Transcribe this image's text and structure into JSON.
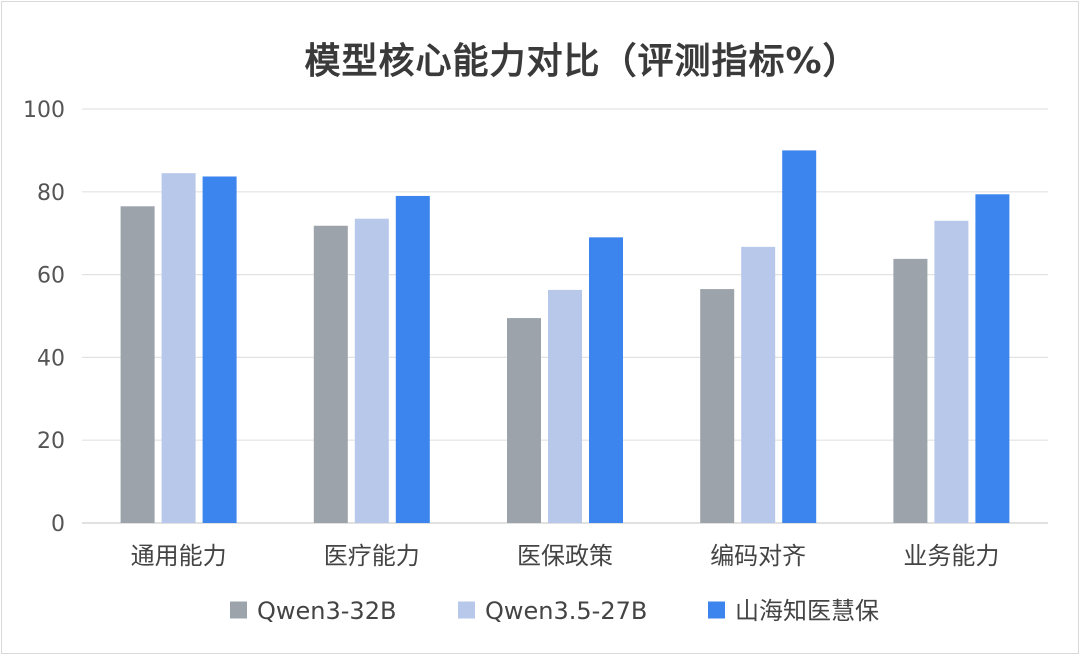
{
  "chart_data": {
    "type": "bar",
    "title": "模型核心能力对比（评测指标%）",
    "categories": [
      "通用能力",
      "医疗能力",
      "医保政策",
      "编码对齐",
      "业务能力"
    ],
    "series": [
      {
        "name": "Qwen3-32B",
        "color": "#9ca3ab",
        "values": [
          76.5,
          71.8,
          49.5,
          56.5,
          63.8
        ]
      },
      {
        "name": "Qwen3.5-27B",
        "color": "#b7c8ea",
        "values": [
          84.5,
          73.5,
          56.3,
          66.7,
          73.0
        ]
      },
      {
        "name": "山海知医慧保",
        "color": "#3d85ee",
        "values": [
          83.7,
          79.0,
          69.0,
          90.0,
          79.4
        ]
      }
    ],
    "ylim": [
      0,
      100
    ],
    "yticks": [
      0,
      20,
      40,
      60,
      80,
      100
    ],
    "grid": true,
    "legend_position": "bottom"
  }
}
